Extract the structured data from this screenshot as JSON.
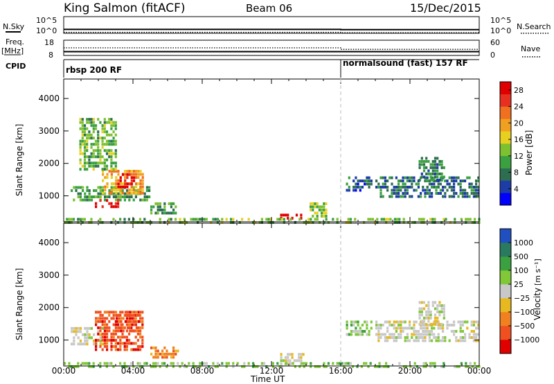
{
  "header": {
    "station": "King Salmon (fitACF)",
    "beam": "Beam 06",
    "date": "15/Dec/2015"
  },
  "side_labels": {
    "nsky": "N.Sky",
    "freq": "Freq.",
    "freq_unit": "[MHz]",
    "cpid": "CPID",
    "nsearch": "N.Search",
    "nave": "Nave"
  },
  "chart_data": [
    {
      "type": "line",
      "panel": "noise",
      "left_axis": {
        "ticks": [
          "10^5",
          "10^0"
        ]
      },
      "right_axis": {
        "ticks": [
          "10^5",
          "10^0"
        ]
      },
      "series": [
        {
          "name": "N.Sky",
          "x": [
            "00:00",
            "16:00",
            "16:00",
            "24:00"
          ],
          "y": [
            15,
            15,
            12,
            12
          ]
        },
        {
          "name": "N.Search",
          "x": [
            "00:00",
            "16:00",
            "16:00",
            "24:00"
          ],
          "y": [
            2,
            2,
            1.5,
            1.5
          ]
        }
      ]
    },
    {
      "type": "line",
      "panel": "frequency",
      "left_axis": {
        "label": "Freq.",
        "unit": "[MHz]",
        "ticks": [
          "18",
          "8"
        ]
      },
      "right_axis": {
        "label": "Nave",
        "ticks": [
          "60",
          "0"
        ]
      },
      "series": [
        {
          "name": "Freq.",
          "x": [
            "00:00",
            "16:00",
            "16:00",
            "24:00"
          ],
          "y": [
            10.5,
            10.5,
            10.5,
            10.5
          ]
        },
        {
          "name": "Nave",
          "x": [
            "00:00",
            "16:00",
            "16:00",
            "24:00"
          ],
          "y": [
            30,
            30,
            24,
            24
          ]
        }
      ]
    },
    {
      "type": "table",
      "panel": "cpid",
      "segments": [
        {
          "start": "00:00",
          "end": "16:00",
          "label": "rbsp 200 RF"
        },
        {
          "start": "16:00",
          "end": "24:00",
          "label": "normalsound (fast) 157 RF"
        }
      ]
    },
    {
      "type": "heatmap",
      "panel": "power",
      "ylabel": "Slant Range [km]",
      "yticks": [
        "4000",
        "3000",
        "2000",
        "1000"
      ],
      "ylim": [
        200,
        4600
      ],
      "xlim": [
        "00:00",
        "24:00"
      ],
      "colorbar": {
        "label": "Power [dB]",
        "ticks": [
          "28",
          "24",
          "20",
          "16",
          "12",
          "8",
          "4"
        ],
        "range": [
          0,
          30
        ],
        "colors": [
          "#0000ff",
          "#1e3ca8",
          "#2e6e50",
          "#3aa040",
          "#7dc030",
          "#e8d020",
          "#f0a020",
          "#f07020",
          "#e83020",
          "#e00000"
        ]
      },
      "regions": [
        {
          "t0": 0.4,
          "t1": 5.0,
          "r0": 900,
          "r1": 1300,
          "value": 10
        },
        {
          "t0": 2.2,
          "t1": 4.6,
          "r0": 1100,
          "r1": 1800,
          "value": 20
        },
        {
          "t0": 3.1,
          "t1": 4.0,
          "r0": 1300,
          "r1": 1700,
          "value": 28
        },
        {
          "t0": 1.8,
          "t1": 3.2,
          "r0": 650,
          "r1": 900,
          "value": 28
        },
        {
          "t0": 0.9,
          "t1": 3.0,
          "r0": 1800,
          "r1": 3400,
          "value": 12
        },
        {
          "t0": 5.0,
          "t1": 6.5,
          "r0": 450,
          "r1": 800,
          "value": 10
        },
        {
          "t0": 12.5,
          "t1": 13.8,
          "r0": 280,
          "r1": 450,
          "value": 28
        },
        {
          "t0": 14.2,
          "t1": 15.1,
          "r0": 400,
          "r1": 800,
          "value": 14
        },
        {
          "t0": 16.3,
          "t1": 17.8,
          "r0": 1200,
          "r1": 1600,
          "value": 6
        },
        {
          "t0": 18.0,
          "t1": 23.9,
          "r0": 1000,
          "r1": 1600,
          "value": 7
        },
        {
          "t0": 20.5,
          "t1": 22.0,
          "r0": 1500,
          "r1": 2200,
          "value": 8
        },
        {
          "t0": 0.0,
          "t1": 24.0,
          "r0": 220,
          "r1": 320,
          "value": 12
        }
      ]
    },
    {
      "type": "heatmap",
      "panel": "velocity",
      "ylabel": "Slant Range [km]",
      "yticks": [
        "4000",
        "3000",
        "2000",
        "1000"
      ],
      "ylim": [
        200,
        4600
      ],
      "xlim": [
        "00:00",
        "24:00"
      ],
      "xticks": [
        "00:00",
        "04:00",
        "08:00",
        "12:00",
        "16:00",
        "20:00",
        "00:00"
      ],
      "xlabel": "Time UT",
      "colorbar": {
        "label": "Velocity",
        "unit": "[m s⁻¹]",
        "ticks": [
          "1000",
          "500",
          "100",
          "25",
          "−25",
          "−100",
          "−500",
          "−1000"
        ],
        "colors": [
          "#2050c0",
          "#2a7a60",
          "#3aa040",
          "#80c838",
          "#c8c8c8",
          "#e8b820",
          "#f08020",
          "#f05020",
          "#e00000"
        ]
      },
      "regions": [
        {
          "t0": 0.4,
          "t1": 2.2,
          "r0": 900,
          "r1": 1400,
          "value": "25"
        },
        {
          "t0": 1.8,
          "t1": 4.6,
          "r0": 700,
          "r1": 1900,
          "value": "−500"
        },
        {
          "t0": 3.0,
          "t1": 4.4,
          "r0": 1300,
          "r1": 1900,
          "value": "−500"
        },
        {
          "t0": 5.0,
          "t1": 6.6,
          "r0": 500,
          "r1": 800,
          "value": "−100"
        },
        {
          "t0": 12.5,
          "t1": 13.8,
          "r0": 300,
          "r1": 600,
          "value": "25"
        },
        {
          "t0": 16.3,
          "t1": 17.8,
          "r0": 1200,
          "r1": 1600,
          "value": "100"
        },
        {
          "t0": 18.0,
          "t1": 23.9,
          "r0": 1000,
          "r1": 1600,
          "value": "25"
        },
        {
          "t0": 20.5,
          "t1": 22.0,
          "r0": 1500,
          "r1": 2200,
          "value": "25"
        },
        {
          "t0": 0.0,
          "t1": 24.0,
          "r0": 220,
          "r1": 320,
          "value": "100"
        }
      ]
    }
  ]
}
